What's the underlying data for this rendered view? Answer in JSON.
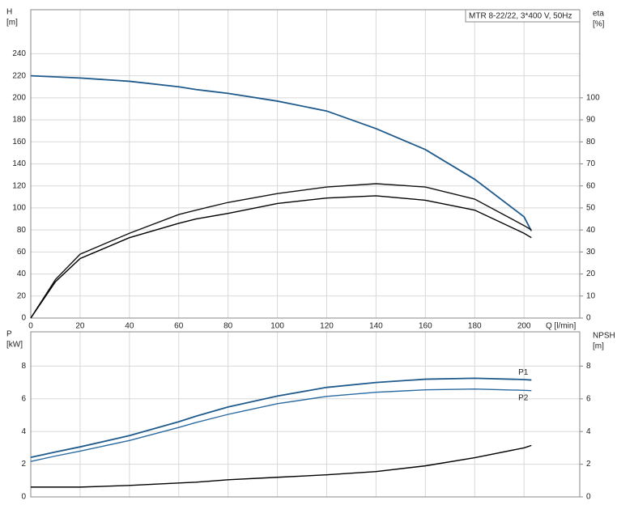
{
  "chart_data": [
    {
      "type": "line",
      "title": "MTR 8-22/22, 3*400 V, 50Hz",
      "ylabel": [
        "H",
        "[m]"
      ],
      "y2label": [
        "eta",
        "[%]"
      ],
      "xlabel": "Q [l/min]",
      "x": [
        0,
        10,
        20,
        40,
        60,
        67,
        80,
        100,
        120,
        140,
        160,
        180,
        200,
        203
      ],
      "xlim": [
        0,
        222.6
      ],
      "xticks": [
        0,
        20,
        40,
        60,
        80,
        100,
        120,
        140,
        160,
        180,
        200
      ],
      "show_xtick_labels": true,
      "ylim": [
        0,
        280
      ],
      "yticks": [
        0,
        20,
        40,
        60,
        80,
        100,
        120,
        140,
        160,
        180,
        200,
        220,
        240
      ],
      "y2lim": [
        0,
        140
      ],
      "y2ticks": [
        0,
        10,
        20,
        30,
        40,
        50,
        60,
        70,
        80,
        90,
        100
      ],
      "grid": true,
      "series": [
        {
          "color": "#1f5a8c",
          "values": [
            220,
            219,
            218,
            215,
            210,
            207.5,
            204,
            197,
            188,
            172,
            153,
            126,
            92,
            79
          ]
        },
        {
          "color": "#111111",
          "axis": "y2",
          "values": [
            0,
            17.5,
            29,
            38.5,
            47,
            49,
            52.5,
            56.5,
            59.5,
            61,
            59.5,
            54,
            42,
            40
          ]
        },
        {
          "color": "#000000",
          "axis": "y2",
          "values": [
            0,
            16.5,
            27,
            36.5,
            43,
            45,
            47.5,
            52,
            54.5,
            55.5,
            53.5,
            49,
            38.5,
            36.5
          ]
        }
      ]
    },
    {
      "type": "line",
      "ylabel": [
        "P",
        "[kW]"
      ],
      "y2label": [
        "NPSH",
        "[m]"
      ],
      "x": [
        0,
        10,
        20,
        40,
        60,
        67,
        80,
        100,
        120,
        140,
        160,
        180,
        200,
        203
      ],
      "xlim": [
        0,
        222.6
      ],
      "xticks": [
        0,
        20,
        40,
        60,
        80,
        100,
        120,
        140,
        160,
        180,
        200
      ],
      "show_xtick_labels": false,
      "ylim": [
        0,
        10.1
      ],
      "yticks": [
        0,
        2,
        4,
        6,
        8
      ],
      "y2lim": [
        0,
        10.1
      ],
      "y2ticks": [
        0,
        2,
        4,
        6,
        8
      ],
      "grid": true,
      "series": [
        {
          "name": "P1",
          "color": "#1f5a8c",
          "values": [
            2.42,
            2.75,
            3.06,
            3.75,
            4.6,
            4.94,
            5.5,
            6.17,
            6.7,
            7.0,
            7.2,
            7.26,
            7.18,
            7.15
          ]
        },
        {
          "name": "P2",
          "color": "#2a6aa0",
          "values": [
            2.17,
            2.5,
            2.8,
            3.45,
            4.25,
            4.55,
            5.05,
            5.7,
            6.15,
            6.4,
            6.55,
            6.6,
            6.52,
            6.5
          ]
        },
        {
          "color": "#000000",
          "axis": "y2",
          "values": [
            0.6,
            0.6,
            0.6,
            0.7,
            0.85,
            0.9,
            1.05,
            1.2,
            1.35,
            1.55,
            1.9,
            2.4,
            3.0,
            3.15
          ]
        }
      ]
    }
  ]
}
